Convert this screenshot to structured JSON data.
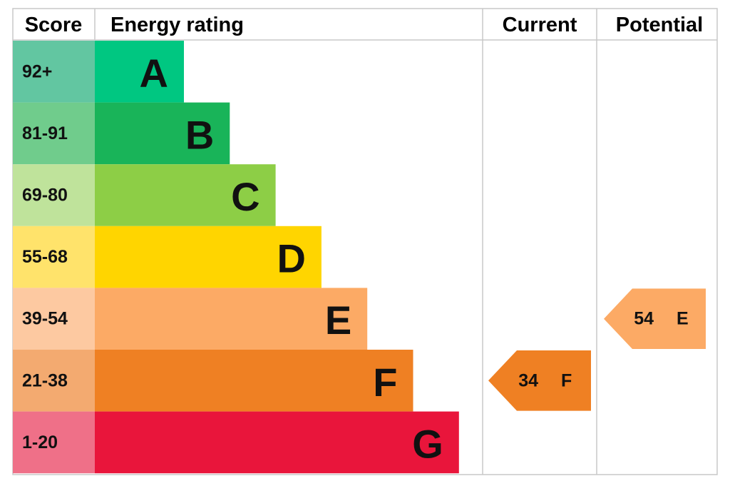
{
  "header": {
    "score": "Score",
    "energy_rating": "Energy rating",
    "current": "Current",
    "potential": "Potential"
  },
  "bands": [
    {
      "score": "92+",
      "letter": "A",
      "color": "#00c781",
      "score_color": "#62c6a1"
    },
    {
      "score": "81-91",
      "letter": "B",
      "color": "#19b459",
      "score_color": "#70cc8c"
    },
    {
      "score": "69-80",
      "letter": "C",
      "color": "#8dce46",
      "score_color": "#bfe39b"
    },
    {
      "score": "55-68",
      "letter": "D",
      "color": "#ffd500",
      "score_color": "#ffe36b"
    },
    {
      "score": "39-54",
      "letter": "E",
      "color": "#fcaa65",
      "score_color": "#fdc9a1"
    },
    {
      "score": "21-38",
      "letter": "F",
      "color": "#ef8023",
      "score_color": "#f3aa70"
    },
    {
      "score": "1-20",
      "letter": "G",
      "color": "#e9153b",
      "score_color": "#ef7088"
    }
  ],
  "current": {
    "value": 34,
    "rating": "F"
  },
  "potential": {
    "value": 54,
    "rating": "E"
  }
}
